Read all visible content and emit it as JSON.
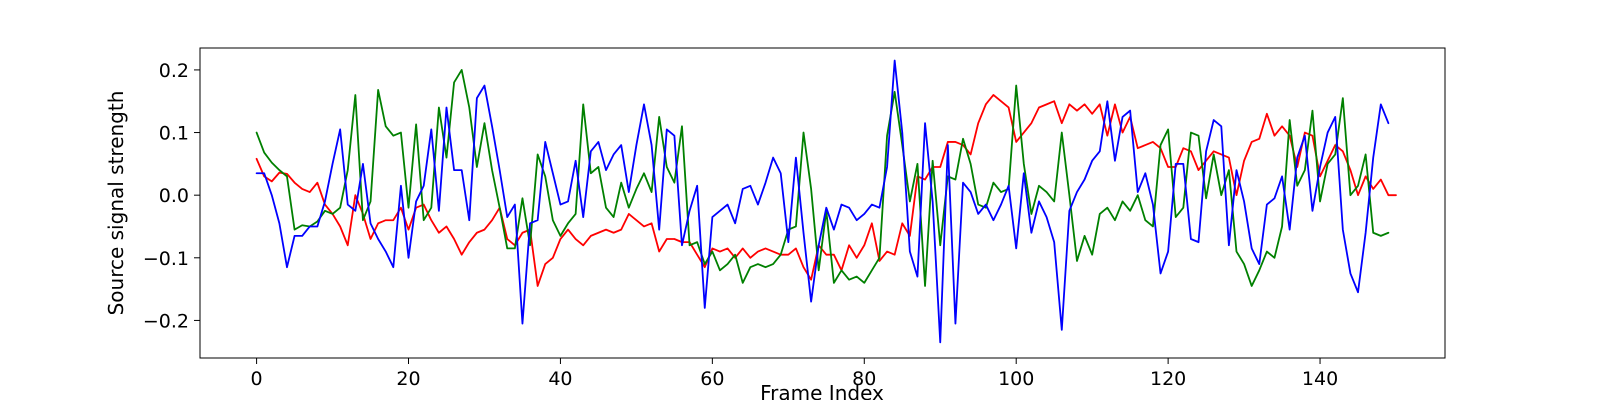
{
  "chart_data": {
    "type": "line",
    "title": "",
    "xlabel": "Frame Index",
    "ylabel": "Source signal strength",
    "xlim": [
      -7.45,
      156.45
    ],
    "ylim": [
      -0.26,
      0.235
    ],
    "xticks": [
      0,
      20,
      40,
      60,
      80,
      100,
      120,
      140
    ],
    "yticks": [
      -0.2,
      -0.1,
      0.0,
      0.1,
      0.2
    ],
    "ytick_labels": [
      "−0.2",
      "−0.1",
      "0.0",
      "0.1",
      "0.2"
    ],
    "grid": false,
    "legend": null,
    "x_start": 0,
    "series": [
      {
        "color": "#ff0000",
        "values": [
          0.058,
          0.03,
          0.022,
          0.036,
          0.034,
          0.02,
          0.01,
          0.005,
          0.02,
          -0.015,
          -0.03,
          -0.05,
          -0.08,
          0.0,
          -0.03,
          -0.07,
          -0.045,
          -0.04,
          -0.04,
          -0.02,
          -0.055,
          -0.02,
          -0.015,
          -0.04,
          -0.06,
          -0.05,
          -0.07,
          -0.095,
          -0.075,
          -0.06,
          -0.055,
          -0.04,
          -0.02,
          -0.07,
          -0.08,
          -0.06,
          -0.055,
          -0.145,
          -0.11,
          -0.1,
          -0.07,
          -0.055,
          -0.07,
          -0.08,
          -0.065,
          -0.06,
          -0.055,
          -0.06,
          -0.055,
          -0.03,
          -0.04,
          -0.05,
          -0.045,
          -0.09,
          -0.07,
          -0.07,
          -0.075,
          -0.075,
          -0.095,
          -0.115,
          -0.085,
          -0.09,
          -0.085,
          -0.1,
          -0.085,
          -0.1,
          -0.09,
          -0.085,
          -0.09,
          -0.095,
          -0.095,
          -0.085,
          -0.115,
          -0.135,
          -0.08,
          -0.095,
          -0.095,
          -0.12,
          -0.08,
          -0.1,
          -0.08,
          -0.045,
          -0.105,
          -0.09,
          -0.095,
          -0.045,
          -0.065,
          0.03,
          0.025,
          0.045,
          0.045,
          0.085,
          0.085,
          0.08,
          0.065,
          0.115,
          0.145,
          0.16,
          0.15,
          0.14,
          0.085,
          0.1,
          0.115,
          0.14,
          0.145,
          0.15,
          0.115,
          0.145,
          0.135,
          0.145,
          0.13,
          0.145,
          0.095,
          0.145,
          0.1,
          0.125,
          0.075,
          0.08,
          0.085,
          0.075,
          0.045,
          0.045,
          0.075,
          0.07,
          0.04,
          0.055,
          0.07,
          0.065,
          0.06,
          0.0,
          0.055,
          0.085,
          0.09,
          0.13,
          0.095,
          0.11,
          0.095,
          0.045,
          0.1,
          0.095,
          0.03,
          0.055,
          0.08,
          0.07,
          0.04,
          0.0,
          0.03,
          0.01,
          0.025,
          0.0,
          0.0
        ]
      },
      {
        "color": "#008000",
        "values": [
          0.1,
          0.068,
          0.052,
          0.04,
          0.03,
          -0.055,
          -0.048,
          -0.05,
          -0.042,
          -0.025,
          -0.03,
          -0.02,
          0.04,
          0.16,
          -0.04,
          -0.01,
          0.168,
          0.11,
          0.095,
          0.1,
          -0.02,
          0.113,
          -0.04,
          -0.02,
          0.14,
          0.06,
          0.18,
          0.2,
          0.14,
          0.045,
          0.115,
          0.04,
          -0.02,
          -0.085,
          -0.085,
          -0.005,
          -0.08,
          0.065,
          0.03,
          -0.04,
          -0.065,
          -0.045,
          -0.03,
          0.145,
          0.035,
          0.045,
          -0.02,
          -0.035,
          0.02,
          -0.02,
          0.01,
          0.035,
          0.005,
          0.125,
          0.045,
          0.02,
          0.11,
          -0.08,
          -0.075,
          -0.11,
          -0.09,
          -0.12,
          -0.11,
          -0.095,
          -0.14,
          -0.115,
          -0.11,
          -0.115,
          -0.11,
          -0.095,
          -0.055,
          -0.05,
          0.1,
          0.01,
          -0.12,
          -0.025,
          -0.14,
          -0.12,
          -0.135,
          -0.13,
          -0.14,
          -0.12,
          -0.1,
          0.095,
          0.165,
          0.08,
          -0.01,
          0.05,
          -0.145,
          0.055,
          -0.08,
          0.03,
          0.025,
          0.09,
          0.05,
          -0.015,
          -0.02,
          0.02,
          0.005,
          0.01,
          0.175,
          0.05,
          -0.03,
          0.015,
          0.005,
          -0.01,
          0.1,
          0.0,
          -0.105,
          -0.065,
          -0.095,
          -0.03,
          -0.02,
          -0.04,
          -0.01,
          -0.025,
          0.0,
          -0.04,
          -0.05,
          0.08,
          0.105,
          -0.035,
          -0.02,
          0.1,
          0.095,
          -0.005,
          0.065,
          0.0,
          0.04,
          -0.09,
          -0.11,
          -0.145,
          -0.12,
          -0.09,
          -0.1,
          -0.05,
          0.12,
          0.015,
          0.04,
          0.135,
          -0.01,
          0.05,
          0.065,
          0.155,
          0.0,
          0.015,
          0.065,
          -0.06,
          -0.065,
          -0.06
        ]
      },
      {
        "color": "#0000ff",
        "values": [
          0.035,
          0.035,
          0.0,
          -0.045,
          -0.115,
          -0.065,
          -0.065,
          -0.05,
          -0.05,
          -0.01,
          0.05,
          0.105,
          -0.015,
          -0.025,
          0.05,
          -0.045,
          -0.07,
          -0.09,
          -0.115,
          0.015,
          -0.1,
          -0.01,
          0.015,
          0.105,
          -0.025,
          0.14,
          0.04,
          0.04,
          -0.04,
          0.155,
          0.175,
          0.11,
          0.04,
          -0.035,
          -0.015,
          -0.205,
          -0.045,
          -0.04,
          0.085,
          0.035,
          -0.015,
          -0.01,
          0.055,
          -0.035,
          0.07,
          0.085,
          0.04,
          0.065,
          0.08,
          0.005,
          0.08,
          0.145,
          0.08,
          -0.055,
          0.105,
          0.095,
          -0.08,
          -0.025,
          0.015,
          -0.18,
          -0.035,
          -0.025,
          -0.015,
          -0.045,
          0.01,
          0.015,
          -0.015,
          0.02,
          0.06,
          0.035,
          -0.075,
          0.06,
          -0.06,
          -0.17,
          -0.08,
          -0.02,
          -0.055,
          -0.015,
          -0.02,
          -0.04,
          -0.03,
          -0.015,
          -0.02,
          0.045,
          0.215,
          0.1,
          -0.09,
          -0.13,
          0.115,
          -0.01,
          -0.235,
          0.08,
          -0.205,
          0.02,
          0.005,
          -0.03,
          -0.015,
          -0.04,
          -0.015,
          0.015,
          -0.085,
          0.035,
          -0.06,
          -0.01,
          -0.035,
          -0.075,
          -0.215,
          -0.025,
          0.005,
          0.025,
          0.055,
          0.07,
          0.15,
          0.055,
          0.125,
          0.135,
          0.005,
          0.035,
          -0.015,
          -0.125,
          -0.09,
          0.05,
          0.05,
          -0.07,
          -0.075,
          0.07,
          0.12,
          0.11,
          -0.08,
          0.04,
          -0.01,
          -0.085,
          -0.11,
          -0.015,
          -0.005,
          0.03,
          -0.055,
          0.06,
          0.095,
          -0.025,
          0.045,
          0.1,
          0.125,
          -0.055,
          -0.125,
          -0.155,
          -0.06,
          0.06,
          0.145,
          0.115
        ]
      }
    ]
  }
}
